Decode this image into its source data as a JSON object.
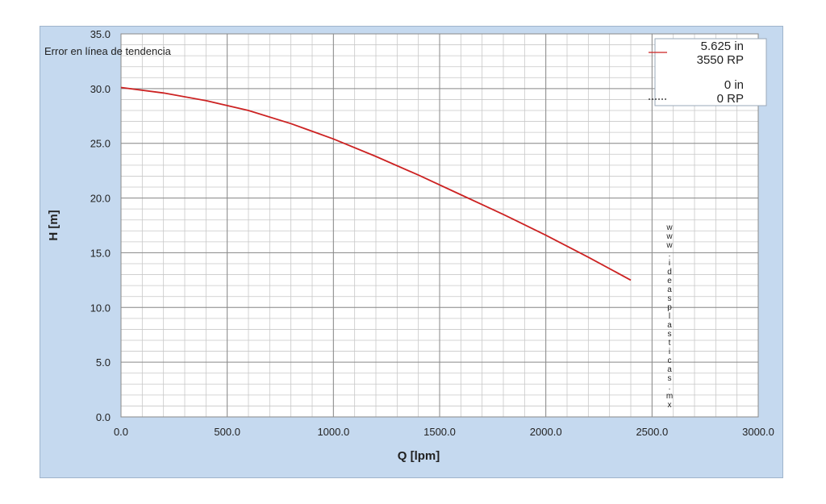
{
  "chart_data": {
    "type": "line",
    "xlabel": "Q [lpm]",
    "ylabel": "H [m]",
    "xlim": [
      0,
      3000
    ],
    "ylim": [
      0,
      35
    ],
    "xticks": [
      "0.0",
      "500.0",
      "1000.0",
      "1500.0",
      "2000.0",
      "2500.0",
      "3000.0"
    ],
    "yticks": [
      "0.0",
      "5.0",
      "10.0",
      "15.0",
      "20.0",
      "25.0",
      "30.0",
      "35.0"
    ],
    "grid": true,
    "annotation": "Error en línea de tendencia",
    "series": [
      {
        "name_lines": [
          "5.625 in",
          "3550 RP"
        ],
        "color": "#cc2222",
        "x": [
          0,
          200,
          400,
          600,
          800,
          1000,
          1200,
          1400,
          1600,
          1800,
          2000,
          2200,
          2400
        ],
        "y": [
          30.1,
          29.6,
          28.9,
          28.0,
          26.8,
          25.4,
          23.8,
          22.1,
          20.3,
          18.5,
          16.6,
          14.6,
          12.5
        ]
      },
      {
        "name_lines": [
          "0 in",
          "0 RP"
        ],
        "color": "#222222",
        "x": [],
        "y": []
      }
    ],
    "legend_position": "top-right",
    "watermark": "www.ideasplasticas.mx"
  }
}
